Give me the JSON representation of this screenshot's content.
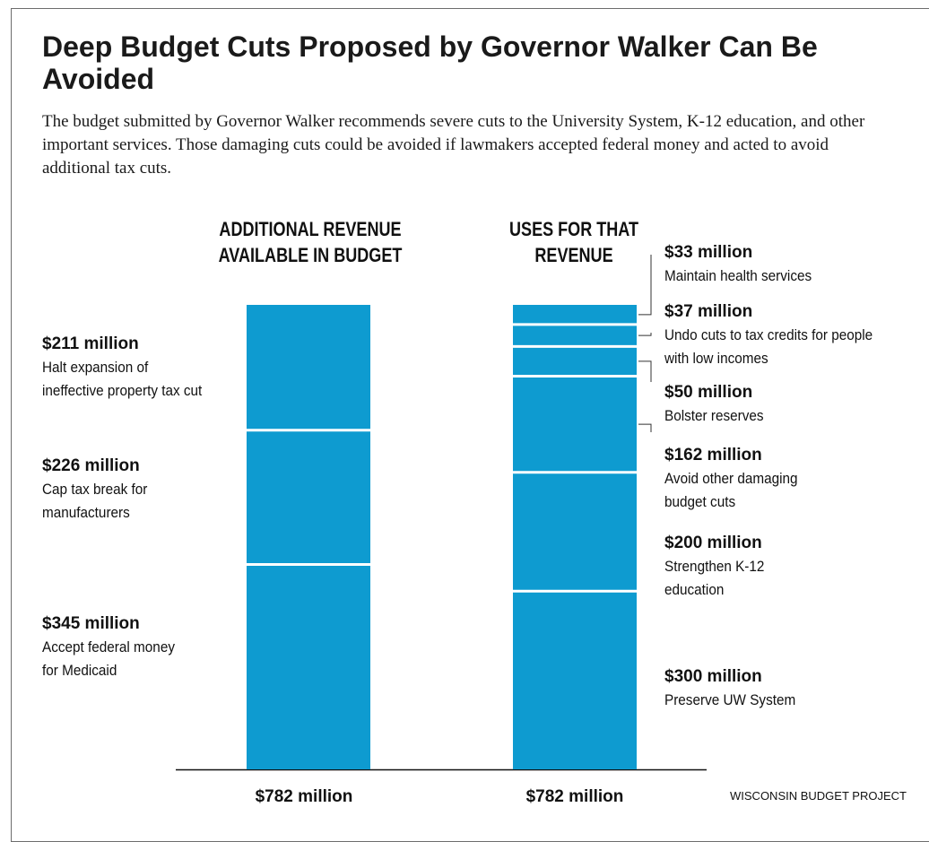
{
  "title": "Deep Budget Cuts Proposed by Governor Walker Can Be Avoided",
  "subtitle": "The budget submitted by Governor Walker recommends severe cuts to the University System, K-12 education, and other important services. Those damaging cuts could be avoided if lawmakers accepted federal money and acted to avoid additional tax cuts.",
  "source": "WISCONSIN BUDGET PROJECT",
  "colors": {
    "bar": "#0e9bd0",
    "text": "#111111",
    "divider": "#ffffff"
  },
  "chart_data": {
    "type": "bar",
    "stacked": true,
    "unit": "million dollars",
    "categories": [
      "ADDITIONAL REVENUE AVAILABLE IN BUDGET",
      "USES FOR THAT REVENUE"
    ],
    "columns": [
      {
        "heading_line1": "ADDITIONAL REVENUE",
        "heading_line2": "AVAILABLE IN BUDGET",
        "total_label": "$782 million",
        "total": 782,
        "segments": [
          {
            "amount_label": "$211 million",
            "value": 211,
            "desc_lines": [
              "Halt expansion of",
              "ineffective property tax cut"
            ]
          },
          {
            "amount_label": "$226 million",
            "value": 226,
            "desc_lines": [
              "Cap tax break for",
              "manufacturers"
            ]
          },
          {
            "amount_label": "$345 million",
            "value": 345,
            "desc_lines": [
              "Accept federal money",
              "for Medicaid"
            ]
          }
        ]
      },
      {
        "heading_line1": "USES FOR THAT",
        "heading_line2": "REVENUE",
        "total_label": "$782 million",
        "total": 782,
        "segments": [
          {
            "amount_label": "$33 million",
            "value": 33,
            "desc_lines": [
              "Maintain health services"
            ]
          },
          {
            "amount_label": "$37 million",
            "value": 37,
            "desc_lines": [
              "Undo cuts to tax credits for people",
              "with low incomes"
            ]
          },
          {
            "amount_label": "$50 million",
            "value": 50,
            "desc_lines": [
              "Bolster reserves"
            ]
          },
          {
            "amount_label": "$162 million",
            "value": 162,
            "desc_lines": [
              "Avoid other damaging",
              "budget cuts"
            ]
          },
          {
            "amount_label": "$200 million",
            "value": 200,
            "desc_lines": [
              "Strengthen K-12",
              "education"
            ]
          },
          {
            "amount_label": "$300 million",
            "value": 300,
            "desc_lines": [
              "Preserve UW System"
            ]
          }
        ]
      }
    ]
  }
}
